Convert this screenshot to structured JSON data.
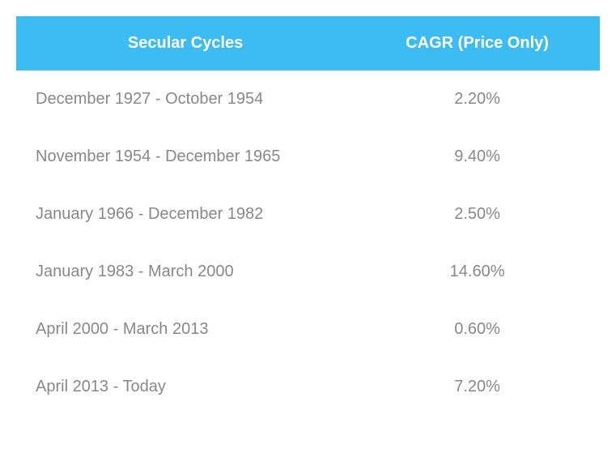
{
  "table": {
    "header_bg": "#3cbcf3",
    "header_color": "#ffffff",
    "body_color": "#888888",
    "columns": [
      {
        "label": "Secular Cycles"
      },
      {
        "label": "CAGR (Price Only)"
      }
    ],
    "rows": [
      {
        "cycle": "December 1927 - October 1954",
        "cagr": "2.20%"
      },
      {
        "cycle": "November 1954 - December 1965",
        "cagr": "9.40%"
      },
      {
        "cycle": "January 1966 - December 1982",
        "cagr": "2.50%"
      },
      {
        "cycle": "January 1983 - March 2000",
        "cagr": "14.60%"
      },
      {
        "cycle": "April 2000 - March 2013",
        "cagr": "0.60%"
      },
      {
        "cycle": "April 2013 - Today",
        "cagr": "7.20%"
      }
    ]
  }
}
